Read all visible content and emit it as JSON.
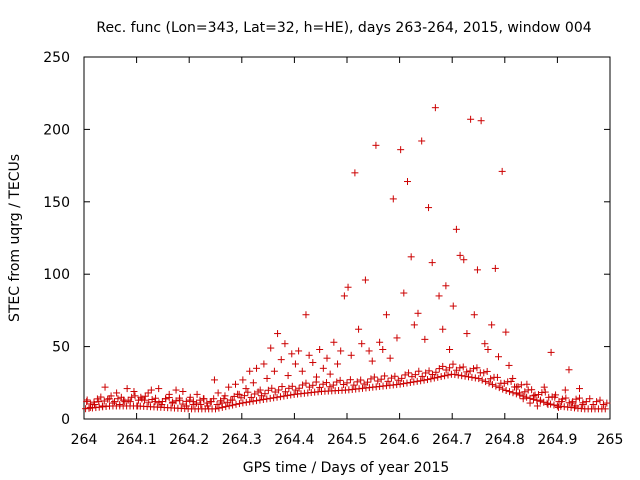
{
  "chart_data": {
    "type": "scatter",
    "title": "Rec. func (Lon=343, Lat=32, h=HE), days 263-264, 2015, window 004",
    "xlabel": "GPS time / Days of year 2015",
    "ylabel": "STEC from uqrg / TECUs",
    "xlim": [
      264,
      265
    ],
    "ylim": [
      0,
      250
    ],
    "xticks": [
      "264",
      "264.1",
      "264.2",
      "264.3",
      "264.4",
      "264.5",
      "264.6",
      "264.7",
      "264.8",
      "264.9",
      "265"
    ],
    "yticks": [
      "0",
      "50",
      "100",
      "150",
      "200",
      "250"
    ],
    "grid": false,
    "marker": "+",
    "color": "#cc0000",
    "points": [
      [
        264.005,
        12
      ],
      [
        264.012,
        8
      ],
      [
        264.02,
        10
      ],
      [
        264.028,
        12
      ],
      [
        264.035,
        9
      ],
      [
        264.04,
        22
      ],
      [
        264.048,
        14
      ],
      [
        264.055,
        11
      ],
      [
        264.062,
        18
      ],
      [
        264.068,
        10
      ],
      [
        264.075,
        13
      ],
      [
        264.082,
        21
      ],
      [
        264.088,
        12
      ],
      [
        264.095,
        19
      ],
      [
        264.102,
        9
      ],
      [
        264.108,
        15
      ],
      [
        264.115,
        13
      ],
      [
        264.122,
        18
      ],
      [
        264.128,
        20
      ],
      [
        264.135,
        12
      ],
      [
        264.142,
        21
      ],
      [
        264.148,
        10
      ],
      [
        264.155,
        14
      ],
      [
        264.162,
        17
      ],
      [
        264.168,
        11
      ],
      [
        264.175,
        20
      ],
      [
        264.182,
        13
      ],
      [
        264.188,
        19
      ],
      [
        264.195,
        9
      ],
      [
        264.202,
        15
      ],
      [
        264.208,
        12
      ],
      [
        264.215,
        17
      ],
      [
        264.222,
        10
      ],
      [
        264.228,
        14
      ],
      [
        264.235,
        9
      ],
      [
        264.242,
        12
      ],
      [
        264.248,
        27
      ],
      [
        264.255,
        18
      ],
      [
        264.262,
        11
      ],
      [
        264.268,
        16
      ],
      [
        264.275,
        22
      ],
      [
        264.282,
        13
      ],
      [
        264.288,
        24
      ],
      [
        264.295,
        17
      ],
      [
        264.302,
        27
      ],
      [
        264.308,
        21
      ],
      [
        264.315,
        33
      ],
      [
        264.322,
        25
      ],
      [
        264.328,
        35
      ],
      [
        264.335,
        20
      ],
      [
        264.342,
        38
      ],
      [
        264.348,
        28
      ],
      [
        264.355,
        49
      ],
      [
        264.362,
        33
      ],
      [
        264.368,
        59
      ],
      [
        264.375,
        41
      ],
      [
        264.382,
        52
      ],
      [
        264.388,
        30
      ],
      [
        264.395,
        45
      ],
      [
        264.402,
        38
      ],
      [
        264.408,
        47
      ],
      [
        264.415,
        33
      ],
      [
        264.422,
        72
      ],
      [
        264.428,
        44
      ],
      [
        264.435,
        39
      ],
      [
        264.442,
        29
      ],
      [
        264.448,
        48
      ],
      [
        264.455,
        35
      ],
      [
        264.462,
        42
      ],
      [
        264.468,
        31
      ],
      [
        264.475,
        53
      ],
      [
        264.482,
        38
      ],
      [
        264.488,
        47
      ],
      [
        264.495,
        85
      ],
      [
        264.502,
        91
      ],
      [
        264.508,
        44
      ],
      [
        264.515,
        170
      ],
      [
        264.522,
        62
      ],
      [
        264.528,
        52
      ],
      [
        264.535,
        96
      ],
      [
        264.542,
        47
      ],
      [
        264.548,
        40
      ],
      [
        264.555,
        189
      ],
      [
        264.562,
        53
      ],
      [
        264.568,
        48
      ],
      [
        264.575,
        72
      ],
      [
        264.582,
        42
      ],
      [
        264.588,
        152
      ],
      [
        264.595,
        56
      ],
      [
        264.602,
        186
      ],
      [
        264.608,
        87
      ],
      [
        264.615,
        164
      ],
      [
        264.622,
        112
      ],
      [
        264.628,
        65
      ],
      [
        264.635,
        73
      ],
      [
        264.642,
        192
      ],
      [
        264.648,
        55
      ],
      [
        264.655,
        146
      ],
      [
        264.662,
        108
      ],
      [
        264.668,
        215
      ],
      [
        264.675,
        85
      ],
      [
        264.682,
        62
      ],
      [
        264.688,
        92
      ],
      [
        264.695,
        48
      ],
      [
        264.702,
        78
      ],
      [
        264.708,
        131
      ],
      [
        264.715,
        113
      ],
      [
        264.722,
        110
      ],
      [
        264.728,
        59
      ],
      [
        264.735,
        207
      ],
      [
        264.742,
        72
      ],
      [
        264.748,
        103
      ],
      [
        264.755,
        206
      ],
      [
        264.762,
        52
      ],
      [
        264.768,
        48
      ],
      [
        264.775,
        65
      ],
      [
        264.782,
        104
      ],
      [
        264.788,
        43
      ],
      [
        264.795,
        171
      ],
      [
        264.802,
        60
      ],
      [
        264.808,
        37
      ],
      [
        264.815,
        28
      ],
      [
        264.822,
        22
      ],
      [
        264.828,
        18
      ],
      [
        264.835,
        14
      ],
      [
        264.842,
        24
      ],
      [
        264.848,
        11
      ],
      [
        264.855,
        16
      ],
      [
        264.862,
        9
      ],
      [
        264.868,
        13
      ],
      [
        264.875,
        22
      ],
      [
        264.882,
        10
      ],
      [
        264.888,
        46
      ],
      [
        264.895,
        15
      ],
      [
        264.902,
        8
      ],
      [
        264.908,
        12
      ],
      [
        264.915,
        20
      ],
      [
        264.922,
        34
      ],
      [
        264.928,
        11
      ],
      [
        264.935,
        9
      ],
      [
        264.942,
        21
      ],
      [
        264.948,
        10
      ]
    ],
    "band": [
      [
        264.0,
        7
      ],
      [
        264.05,
        9
      ],
      [
        264.1,
        9
      ],
      [
        264.15,
        8
      ],
      [
        264.2,
        7
      ],
      [
        264.25,
        7
      ],
      [
        264.3,
        11
      ],
      [
        264.35,
        14
      ],
      [
        264.4,
        17
      ],
      [
        264.45,
        19
      ],
      [
        264.5,
        20
      ],
      [
        264.55,
        22
      ],
      [
        264.6,
        24
      ],
      [
        264.65,
        27
      ],
      [
        264.7,
        31
      ],
      [
        264.75,
        28
      ],
      [
        264.8,
        20
      ],
      [
        264.85,
        14
      ],
      [
        264.9,
        9
      ],
      [
        264.95,
        7
      ],
      [
        265.0,
        7
      ]
    ]
  }
}
